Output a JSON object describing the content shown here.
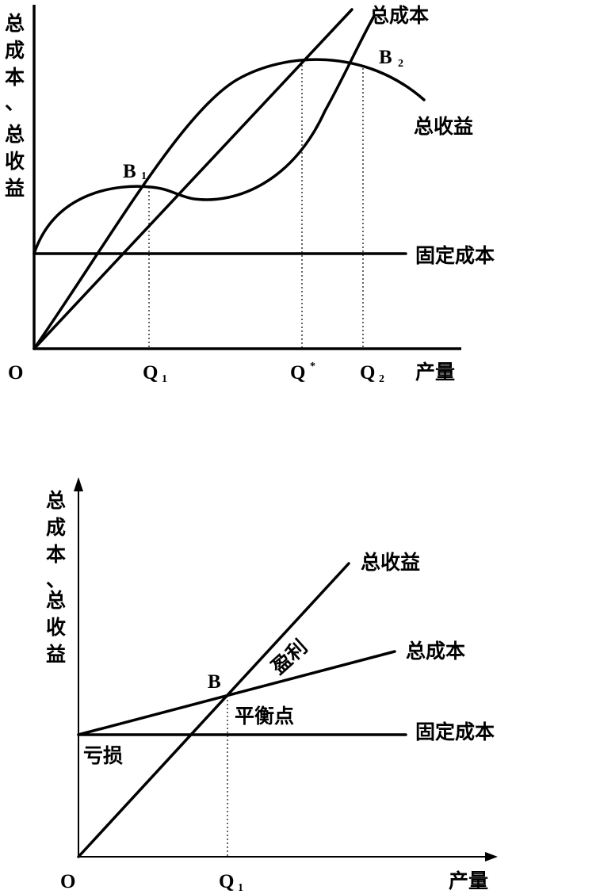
{
  "diagram1": {
    "y_axis_label": [
      "总",
      "成",
      "本",
      "、",
      "总",
      "收",
      "益"
    ],
    "origin": "O",
    "x_axis_label": "产量",
    "q1": {
      "main": "Q",
      "sub": "1"
    },
    "qstar": {
      "main": "Q",
      "sup": "*"
    },
    "q2": {
      "main": "Q",
      "sub": "2"
    },
    "b1": {
      "main": "B",
      "sub": "1"
    },
    "b2": {
      "main": "B",
      "sub": "2"
    },
    "total_cost_label": "总成本",
    "total_revenue_label": "总收益",
    "fixed_cost_label": "固定成本"
  },
  "diagram2": {
    "y_axis_label": [
      "总",
      "成",
      "本",
      "、",
      "总",
      "收",
      "益"
    ],
    "origin": "O",
    "x_axis_label": "产量",
    "q1": {
      "main": "Q",
      "sub": "1"
    },
    "b": "B",
    "total_revenue_label": "总收益",
    "total_cost_label": "总成本",
    "fixed_cost_label": "固定成本",
    "profit_label": "盈利",
    "loss_label": "亏损",
    "break_even_label": "平衡点"
  }
}
